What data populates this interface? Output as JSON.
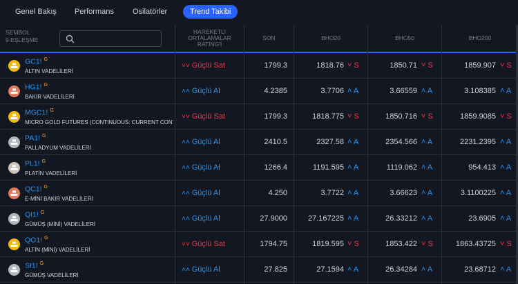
{
  "tabs": [
    {
      "label": "Genel Bakış",
      "active": false
    },
    {
      "label": "Performans",
      "active": false
    },
    {
      "label": "Osilatörler",
      "active": false
    },
    {
      "label": "Trend Takibi",
      "active": true
    }
  ],
  "header": {
    "symbol_label": "SEMBOL",
    "match_count": "9 EŞLEŞME",
    "search_placeholder": "",
    "rating_label": "HAREKETLİ ORTALAMALAR RATİNG'İ",
    "columns": [
      "SON",
      "BHO20",
      "BHO50",
      "BHO200"
    ]
  },
  "colors": {
    "buy": "#2196f3",
    "sell": "#f23645",
    "accent": "#2962ff",
    "background": "#131722"
  },
  "rows": [
    {
      "symbol": "GC1!",
      "badge": "G",
      "desc": "ALTIN VADELİLERİ",
      "logo": "gold-bars-icon",
      "logo_color": "#f0b90b",
      "rating": "Güçlü Sat",
      "rating_type": "sell",
      "last": "1799.3",
      "bho20": "1818.76",
      "bho20_sig": "S",
      "bho20_type": "sell",
      "bho50": "1850.71",
      "bho50_sig": "S",
      "bho50_type": "sell",
      "bho200": "1859.907",
      "bho200_sig": "S",
      "bho200_type": "sell"
    },
    {
      "symbol": "HG1!",
      "badge": "G",
      "desc": "BAKIR VADELİLERİ",
      "logo": "copper-icon",
      "logo_color": "#e07a5f",
      "rating": "Güçlü Al",
      "rating_type": "buy",
      "last": "4.2385",
      "bho20": "3.7706",
      "bho20_sig": "A",
      "bho20_type": "buy",
      "bho50": "3.66559",
      "bho50_sig": "A",
      "bho50_type": "buy",
      "bho200": "3.108385",
      "bho200_sig": "A",
      "bho200_type": "buy"
    },
    {
      "symbol": "MGC1!",
      "badge": "G",
      "desc": "MICRO GOLD FUTURES (CONTINUOUS: CURRENT CONT",
      "logo": "gold-bars-icon",
      "logo_color": "#f0b90b",
      "rating": "Güçlü Sat",
      "rating_type": "sell",
      "last": "1799.3",
      "bho20": "1818.775",
      "bho20_sig": "S",
      "bho20_type": "sell",
      "bho50": "1850.716",
      "bho50_sig": "S",
      "bho50_type": "sell",
      "bho200": "1859.9085",
      "bho200_sig": "S",
      "bho200_type": "sell"
    },
    {
      "symbol": "PA1!",
      "badge": "G",
      "desc": "PALLADYUM VADELİLERİ",
      "logo": "silver-bars-icon",
      "logo_color": "#b2b5be",
      "rating": "Güçlü Al",
      "rating_type": "buy",
      "last": "2410.5",
      "bho20": "2327.58",
      "bho20_sig": "A",
      "bho20_type": "buy",
      "bho50": "2354.566",
      "bho50_sig": "A",
      "bho50_type": "buy",
      "bho200": "2231.2395",
      "bho200_sig": "A",
      "bho200_type": "buy"
    },
    {
      "symbol": "PL1!",
      "badge": "G",
      "desc": "PLATİN VADELİLERİ",
      "logo": "platinum-bars-icon",
      "logo_color": "#d1c4b8",
      "rating": "Güçlü Al",
      "rating_type": "buy",
      "last": "1266.4",
      "bho20": "1191.595",
      "bho20_sig": "A",
      "bho20_type": "buy",
      "bho50": "1119.062",
      "bho50_sig": "A",
      "bho50_type": "buy",
      "bho200": "954.413",
      "bho200_sig": "A",
      "bho200_type": "buy"
    },
    {
      "symbol": "QC1!",
      "badge": "G",
      "desc": "E-MİNİ BAKIR VADELİLERİ",
      "logo": "copper-icon",
      "logo_color": "#e07a5f",
      "rating": "Güçlü Al",
      "rating_type": "buy",
      "last": "4.250",
      "bho20": "3.7722",
      "bho20_sig": "A",
      "bho20_type": "buy",
      "bho50": "3.66623",
      "bho50_sig": "A",
      "bho50_type": "buy",
      "bho200": "3.1100225",
      "bho200_sig": "A",
      "bho200_type": "buy"
    },
    {
      "symbol": "QI1!",
      "badge": "G",
      "desc": "GÜMÜŞ (MİNİ) VADELİLERİ",
      "logo": "silver-bars-icon",
      "logo_color": "#b2b5be",
      "rating": "Güçlü Al",
      "rating_type": "buy",
      "last": "27.9000",
      "bho20": "27.167225",
      "bho20_sig": "A",
      "bho20_type": "buy",
      "bho50": "26.33212",
      "bho50_sig": "A",
      "bho50_type": "buy",
      "bho200": "23.6905",
      "bho200_sig": "A",
      "bho200_type": "buy"
    },
    {
      "symbol": "QO1!",
      "badge": "G",
      "desc": "ALTIN (MİNİ) VADELİLERİ",
      "logo": "gold-bars-icon",
      "logo_color": "#f0b90b",
      "rating": "Güçlü Sat",
      "rating_type": "sell",
      "last": "1794.75",
      "bho20": "1819.595",
      "bho20_sig": "S",
      "bho20_type": "sell",
      "bho50": "1853.422",
      "bho50_sig": "S",
      "bho50_type": "sell",
      "bho200": "1863.43725",
      "bho200_sig": "S",
      "bho200_type": "sell"
    },
    {
      "symbol": "SI1!",
      "badge": "G",
      "desc": "GÜMÜŞ VADELİLERİ",
      "logo": "silver-bars-icon",
      "logo_color": "#b2b5be",
      "rating": "Güçlü Al",
      "rating_type": "buy",
      "last": "27.825",
      "bho20": "27.1594",
      "bho20_sig": "A",
      "bho20_type": "buy",
      "bho50": "26.34284",
      "bho50_sig": "A",
      "bho50_type": "buy",
      "bho200": "23.68712",
      "bho200_sig": "A",
      "bho200_type": "buy"
    }
  ]
}
